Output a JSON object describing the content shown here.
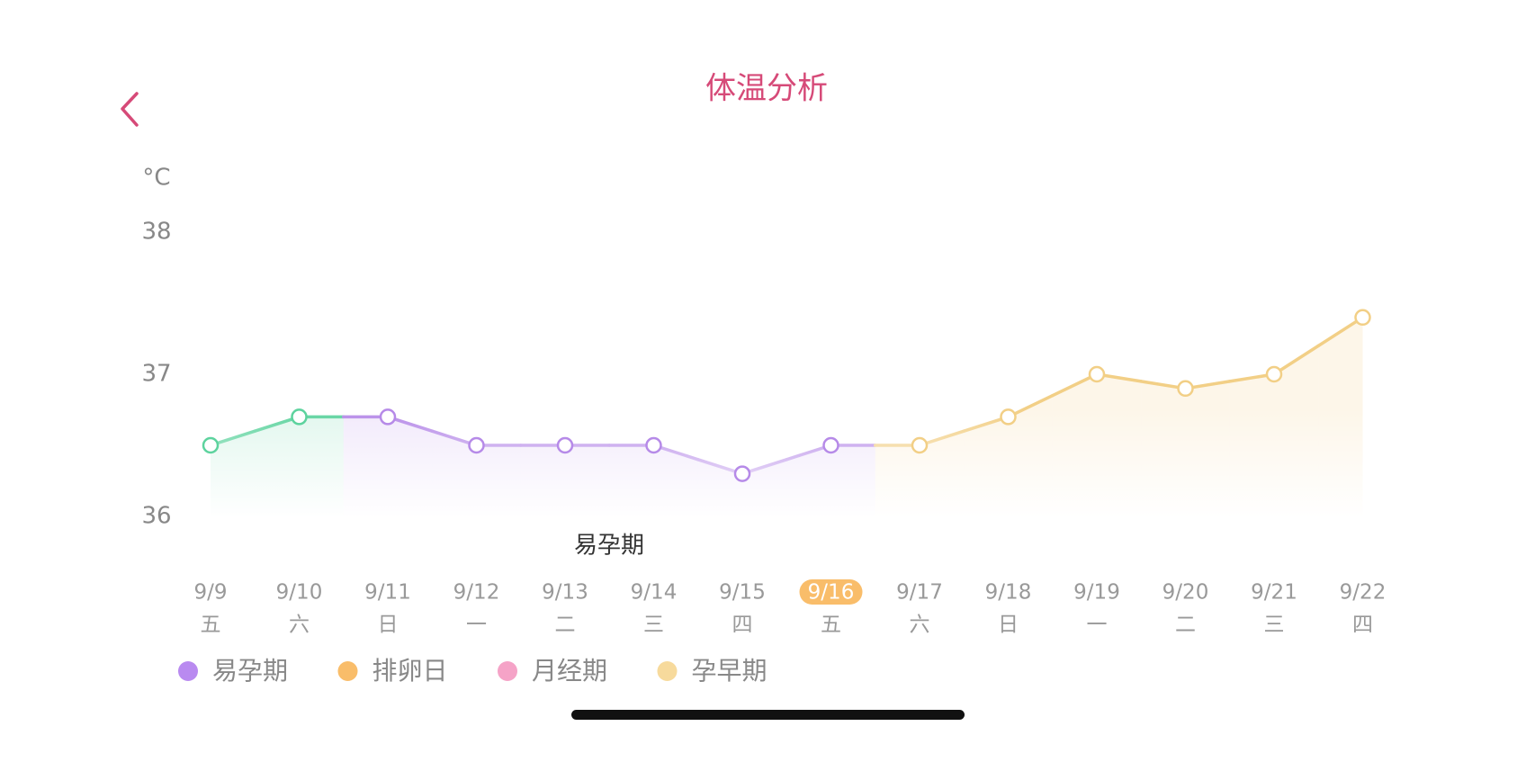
{
  "header": {
    "title": "体温分析"
  },
  "chart_data": {
    "type": "line",
    "y_unit": "°C",
    "categories": [
      "9/9",
      "9/10",
      "9/11",
      "9/12",
      "9/13",
      "9/14",
      "9/15",
      "9/16",
      "9/17",
      "9/18",
      "9/19",
      "9/20",
      "9/21",
      "9/22"
    ],
    "weekdays": [
      "五",
      "六",
      "日",
      "一",
      "二",
      "三",
      "四",
      "五",
      "六",
      "日",
      "一",
      "二",
      "三",
      "四"
    ],
    "values": [
      36.5,
      36.7,
      36.7,
      36.5,
      36.5,
      36.5,
      36.3,
      36.5,
      36.5,
      36.7,
      37.0,
      36.9,
      37.0,
      37.4
    ],
    "point_colors": [
      "#5dd39e",
      "#5dd39e",
      "#b68ae8",
      "#b68ae8",
      "#b68ae8",
      "#b68ae8",
      "#b68ae8",
      "#b68ae8",
      "#f2cf86",
      "#f2cf86",
      "#f2cf86",
      "#f2cf86",
      "#f2cf86",
      "#f2cf86"
    ],
    "highlight_index": 7,
    "highlight_color": "#f9bd6a",
    "ylim": [
      36,
      38
    ],
    "yticks": [
      36,
      37,
      38
    ],
    "annotation": "易孕期",
    "legend": [
      {
        "name": "易孕期",
        "color": "#b98af0"
      },
      {
        "name": "排卵日",
        "color": "#f9bd6a"
      },
      {
        "name": "月经期",
        "color": "#f5a3c7"
      },
      {
        "name": "孕早期",
        "color": "#f7da9c"
      }
    ]
  }
}
